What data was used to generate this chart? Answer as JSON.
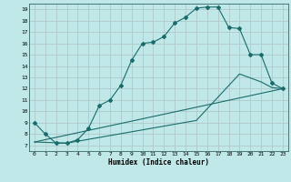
{
  "title": "",
  "xlabel": "Humidex (Indice chaleur)",
  "bg_color": "#c0e8e8",
  "grid_color": "#b0c8c8",
  "line_color": "#1a6b6b",
  "xlim": [
    -0.5,
    23.5
  ],
  "ylim": [
    6.5,
    19.5
  ],
  "xticks": [
    0,
    1,
    2,
    3,
    4,
    5,
    6,
    7,
    8,
    9,
    10,
    11,
    12,
    13,
    14,
    15,
    16,
    17,
    18,
    19,
    20,
    21,
    22,
    23
  ],
  "yticks": [
    7,
    8,
    9,
    10,
    11,
    12,
    13,
    14,
    15,
    16,
    17,
    18,
    19
  ],
  "line1_x": [
    0,
    1,
    2,
    3,
    4,
    5,
    6,
    7,
    8,
    9,
    10,
    11,
    12,
    13,
    14,
    15,
    16,
    17,
    18,
    19,
    20,
    21,
    22,
    23
  ],
  "line1_y": [
    9.0,
    8.0,
    7.2,
    7.2,
    7.5,
    8.5,
    10.5,
    11.0,
    12.3,
    14.5,
    16.0,
    16.1,
    16.6,
    17.8,
    18.3,
    19.1,
    19.2,
    19.2,
    17.4,
    17.3,
    15.0,
    15.0,
    12.5,
    12.0
  ],
  "line2_x": [
    0,
    23
  ],
  "line2_y": [
    7.3,
    12.0
  ],
  "line3_x": [
    0,
    3,
    15,
    19,
    21,
    22,
    23
  ],
  "line3_y": [
    7.3,
    7.2,
    9.2,
    13.3,
    12.6,
    12.1,
    12.0
  ]
}
